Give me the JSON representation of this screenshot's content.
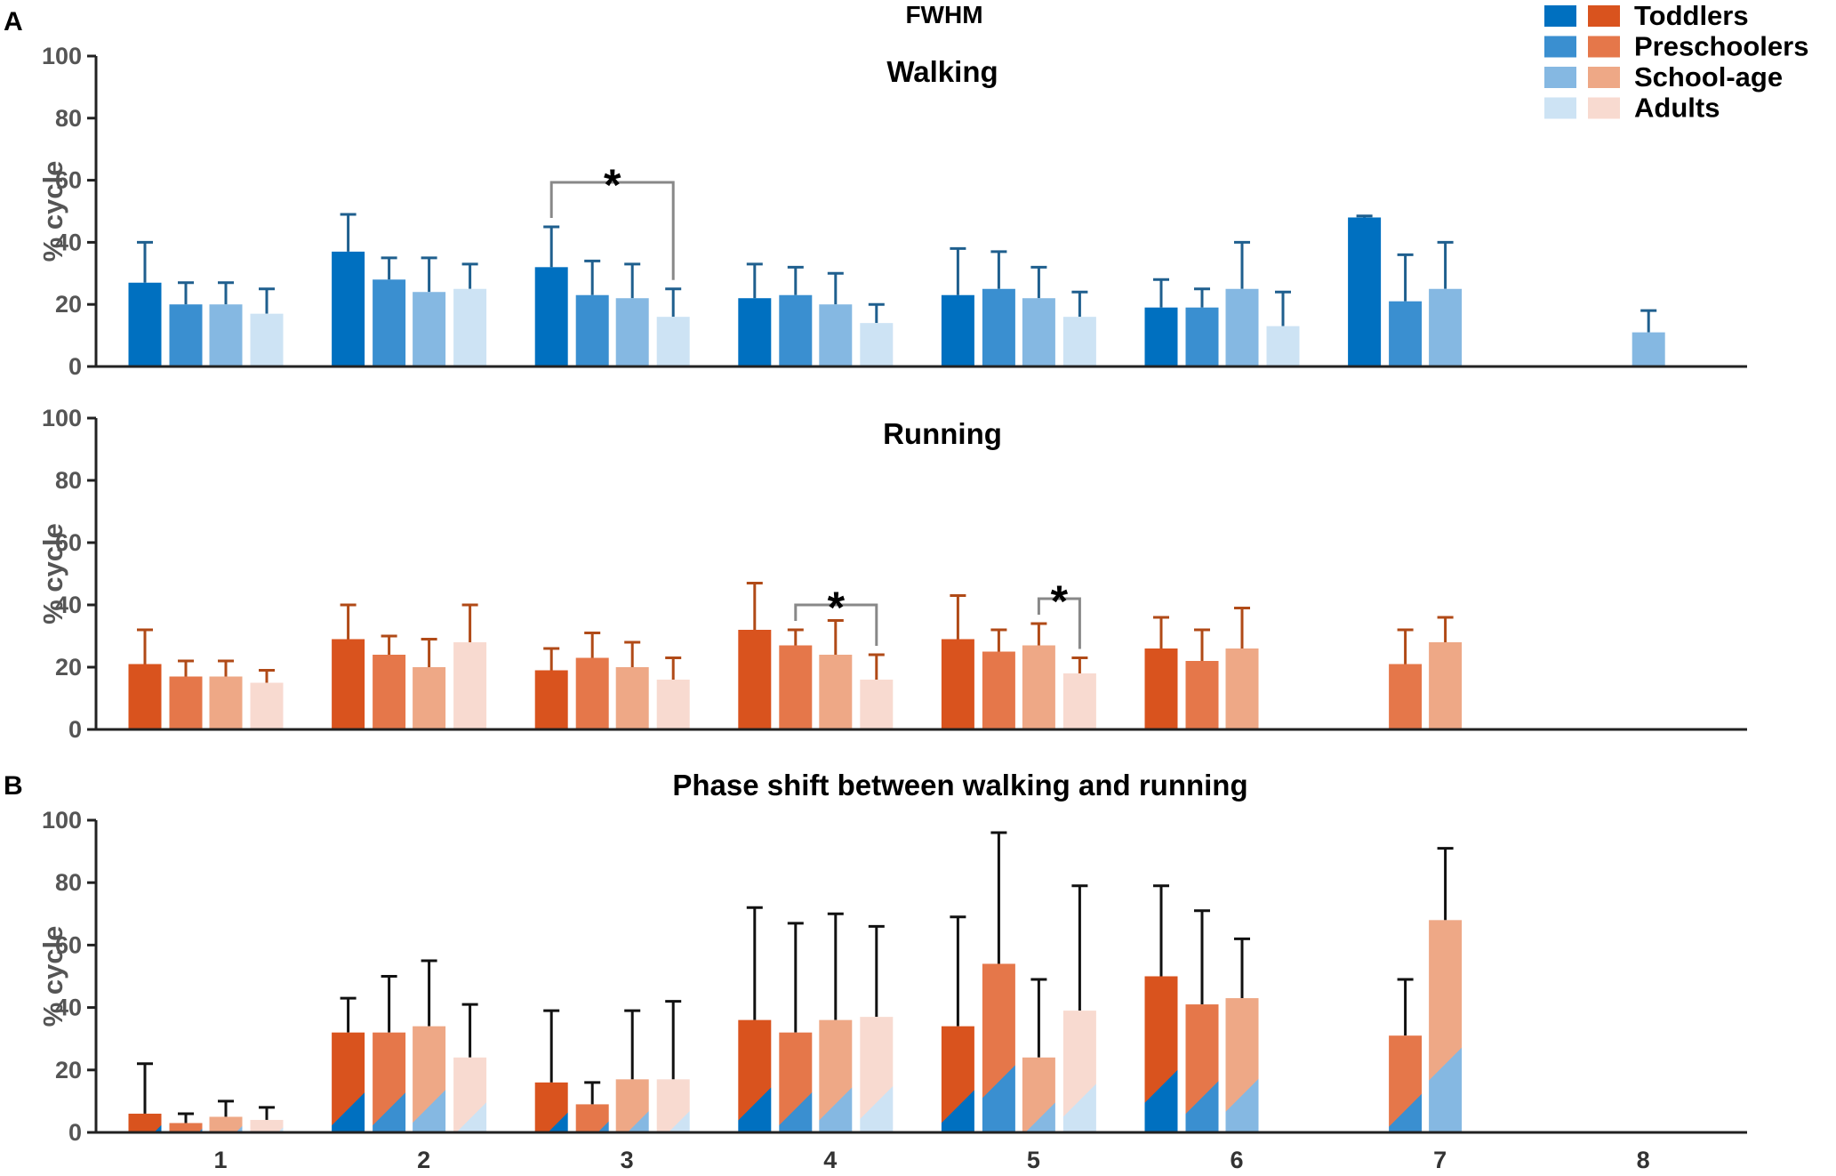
{
  "figure": {
    "title": "FWHM",
    "panel_a_label": "A",
    "panel_b_label": "B"
  },
  "legend": {
    "entries": [
      {
        "label": "Toddlers",
        "walk_color": "#0070C0",
        "run_color": "#D9531E"
      },
      {
        "label": "Preschoolers",
        "walk_color": "#3A8FD0",
        "run_color": "#E5774A"
      },
      {
        "label": "School-age",
        "walk_color": "#85B8E2",
        "run_color": "#EEA886"
      },
      {
        "label": "Adults",
        "walk_color": "#CDE3F4",
        "run_color": "#F8DAD0"
      }
    ]
  },
  "chart_data": [
    {
      "id": "walking",
      "type": "bar",
      "title": "Walking",
      "ylabel": "% cycle",
      "ylim": [
        0,
        100
      ],
      "yticks": [
        "0",
        "20",
        "40",
        "60",
        "80",
        "100"
      ],
      "categories": [
        "1",
        "2",
        "3",
        "4",
        "5",
        "6",
        "7",
        "8"
      ],
      "series": [
        {
          "name": "Toddlers",
          "values": [
            27,
            37,
            32,
            22,
            23,
            19,
            48,
            null
          ],
          "errors": [
            13,
            12,
            13,
            11,
            15,
            9,
            0.5,
            null
          ]
        },
        {
          "name": "Preschoolers",
          "values": [
            20,
            28,
            23,
            23,
            25,
            19,
            21,
            null
          ],
          "errors": [
            7,
            7,
            11,
            9,
            12,
            6,
            15,
            null
          ]
        },
        {
          "name": "School-age",
          "values": [
            20,
            24,
            22,
            20,
            22,
            25,
            25,
            11
          ],
          "errors": [
            7,
            11,
            11,
            10,
            10,
            15,
            15,
            7
          ]
        },
        {
          "name": "Adults",
          "values": [
            17,
            25,
            16,
            14,
            16,
            13,
            null,
            null
          ],
          "errors": [
            8,
            8,
            9,
            6,
            8,
            11,
            null,
            null
          ]
        }
      ],
      "significance": [
        {
          "category": "3",
          "from": "Toddlers",
          "to": "Adults",
          "label": "*"
        }
      ]
    },
    {
      "id": "running",
      "type": "bar",
      "title": "Running",
      "ylabel": "% cycle",
      "ylim": [
        0,
        100
      ],
      "yticks": [
        "0",
        "20",
        "40",
        "60",
        "80",
        "100"
      ],
      "categories": [
        "1",
        "2",
        "3",
        "4",
        "5",
        "6",
        "7",
        "8"
      ],
      "series": [
        {
          "name": "Toddlers",
          "values": [
            21,
            29,
            19,
            32,
            29,
            26,
            null,
            null
          ],
          "errors": [
            11,
            11,
            7,
            15,
            14,
            10,
            null,
            null
          ]
        },
        {
          "name": "Preschoolers",
          "values": [
            17,
            24,
            23,
            27,
            25,
            22,
            21,
            null
          ],
          "errors": [
            5,
            6,
            8,
            5,
            7,
            10,
            11,
            null
          ]
        },
        {
          "name": "School-age",
          "values": [
            17,
            20,
            20,
            24,
            27,
            26,
            28,
            null
          ],
          "errors": [
            5,
            9,
            8,
            11,
            7,
            13,
            8,
            null
          ]
        },
        {
          "name": "Adults",
          "values": [
            15,
            28,
            16,
            16,
            18,
            null,
            null,
            null
          ],
          "errors": [
            4,
            12,
            7,
            8,
            5,
            null,
            null,
            null
          ]
        }
      ],
      "significance": [
        {
          "category": "4",
          "from": "Preschoolers",
          "to": "Adults",
          "label": "*"
        },
        {
          "category": "5",
          "from": "School-age",
          "to": "Adults",
          "label": "*"
        }
      ]
    },
    {
      "id": "phase_shift",
      "type": "bar",
      "title": "Phase shift between walking and running",
      "ylabel": "% cycle",
      "ylim": [
        0,
        100
      ],
      "yticks": [
        "0",
        "20",
        "40",
        "60",
        "80",
        "100"
      ],
      "categories": [
        "1",
        "2",
        "3",
        "4",
        "5",
        "6",
        "7",
        "8"
      ],
      "series": [
        {
          "name": "Toddlers",
          "values": [
            6,
            32,
            16,
            36,
            34,
            50,
            null,
            null
          ],
          "errors": [
            16,
            11,
            23,
            36,
            35,
            29,
            null,
            null
          ]
        },
        {
          "name": "Preschoolers",
          "values": [
            3,
            32,
            9,
            32,
            54,
            41,
            31,
            null
          ],
          "errors": [
            3,
            18,
            7,
            35,
            42,
            30,
            18,
            null
          ]
        },
        {
          "name": "School-age",
          "values": [
            5,
            34,
            17,
            36,
            24,
            43,
            68,
            null
          ],
          "errors": [
            5,
            21,
            22,
            34,
            25,
            19,
            23,
            null
          ]
        },
        {
          "name": "Adults",
          "values": [
            4,
            24,
            17,
            37,
            39,
            null,
            null,
            null
          ],
          "errors": [
            4,
            17,
            25,
            29,
            40,
            null,
            null,
            null
          ]
        }
      ]
    }
  ]
}
